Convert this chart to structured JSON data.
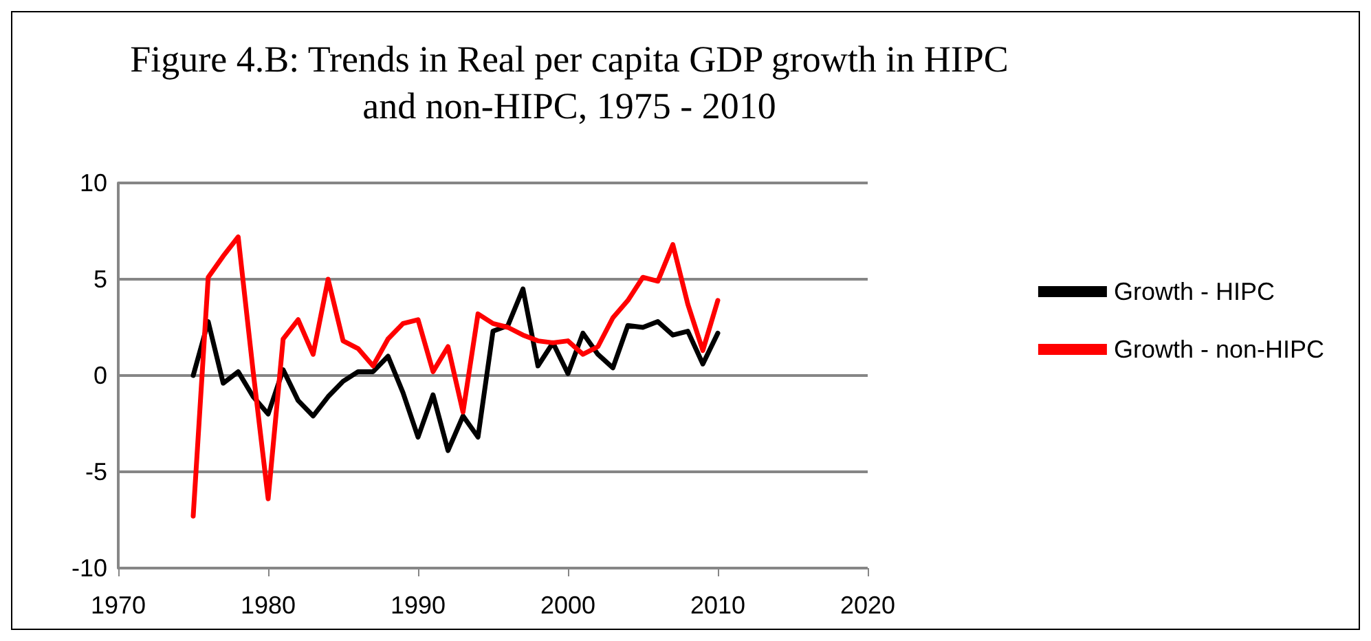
{
  "chart_data": {
    "type": "line",
    "title": "Figure 4.B: Trends in Real per capita GDP growth in HIPC\nand non-HIPC, 1975 - 2010",
    "x": [
      1975,
      1976,
      1977,
      1978,
      1979,
      1980,
      1981,
      1982,
      1983,
      1984,
      1985,
      1986,
      1987,
      1988,
      1989,
      1990,
      1991,
      1992,
      1993,
      1994,
      1995,
      1996,
      1997,
      1998,
      1999,
      2000,
      2001,
      2002,
      2003,
      2004,
      2005,
      2006,
      2007,
      2008,
      2009,
      2010
    ],
    "series": [
      {
        "name": "Growth - HIPC",
        "color": "#000000",
        "values": [
          0,
          2.8,
          -0.4,
          0.2,
          -1.1,
          -2.0,
          0.3,
          -1.3,
          -2.1,
          -1.1,
          -0.3,
          0.2,
          0.2,
          1.0,
          -0.9,
          -3.2,
          -1.0,
          -3.9,
          -2.1,
          -3.2,
          2.3,
          2.6,
          4.5,
          0.5,
          1.7,
          0.1,
          2.2,
          1.1,
          0.4,
          2.6,
          2.5,
          2.8,
          2.1,
          2.3,
          0.6,
          2.2
        ]
      },
      {
        "name": "Growth - non-HIPC",
        "color": "#ff0000",
        "values": [
          -7.3,
          5.1,
          6.2,
          7.2,
          0.2,
          -6.4,
          1.9,
          2.9,
          1.1,
          5.0,
          1.8,
          1.4,
          0.5,
          1.9,
          2.7,
          2.9,
          0.2,
          1.5,
          -1.9,
          3.2,
          2.7,
          2.5,
          2.1,
          1.8,
          1.7,
          1.8,
          1.1,
          1.5,
          3.0,
          3.9,
          5.1,
          4.9,
          6.8,
          3.7,
          1.3,
          3.9
        ]
      }
    ],
    "xlim": [
      1970,
      2020
    ],
    "xticks": [
      1970,
      1980,
      1990,
      2000,
      2010,
      2020
    ],
    "ylim": [
      -10,
      10
    ],
    "yticks": [
      -10,
      -5,
      0,
      5,
      10
    ],
    "grid": "y",
    "legend": "right",
    "marker": "none",
    "line_style": "solid"
  }
}
